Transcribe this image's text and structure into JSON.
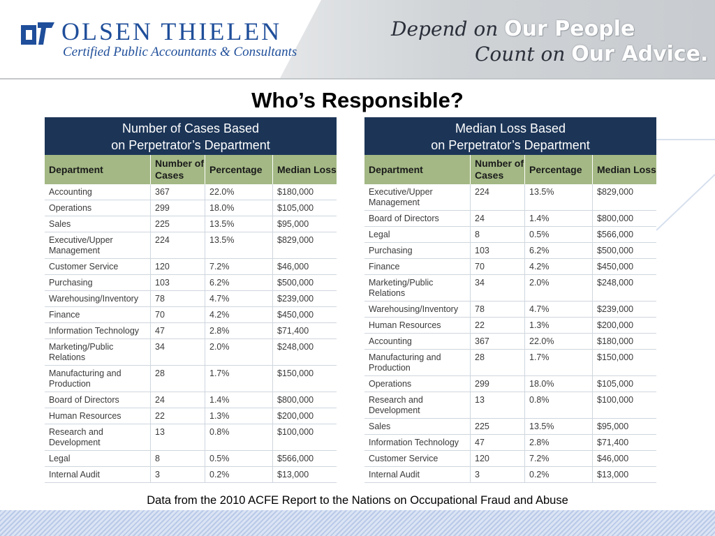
{
  "header": {
    "company_name": "Olsen Thielen",
    "company_subtitle": "Certified Public Accountants & Consultants",
    "tagline_line1_prefix": "Depend on",
    "tagline_line1_emphasis": "Our People",
    "tagline_line2_prefix": "Count on",
    "tagline_line2_emphasis": "Our Advice.",
    "brand_color": "#1f4e9a"
  },
  "title": "Who’s Responsible?",
  "columns": [
    "Department",
    "Number of Cases",
    "Percentage",
    "Median Loss"
  ],
  "left_table": {
    "heading_line1": "Number of Cases Based",
    "heading_line2": "on Perpetrator’s Department",
    "rows": [
      [
        "Accounting",
        "367",
        "22.0%",
        "$180,000"
      ],
      [
        "Operations",
        "299",
        "18.0%",
        "$105,000"
      ],
      [
        "Sales",
        "225",
        "13.5%",
        "$95,000"
      ],
      [
        "Executive/Upper Management",
        "224",
        "13.5%",
        "$829,000"
      ],
      [
        "Customer Service",
        "120",
        "7.2%",
        "$46,000"
      ],
      [
        "Purchasing",
        "103",
        "6.2%",
        "$500,000"
      ],
      [
        "Warehousing/Inventory",
        "78",
        "4.7%",
        "$239,000"
      ],
      [
        "Finance",
        "70",
        "4.2%",
        "$450,000"
      ],
      [
        "Information Technology",
        "47",
        "2.8%",
        "$71,400"
      ],
      [
        "Marketing/Public Relations",
        "34",
        "2.0%",
        "$248,000"
      ],
      [
        "Manufacturing and Production",
        "28",
        "1.7%",
        "$150,000"
      ],
      [
        "Board of Directors",
        "24",
        "1.4%",
        "$800,000"
      ],
      [
        "Human Resources",
        "22",
        "1.3%",
        "$200,000"
      ],
      [
        "Research and Development",
        "13",
        "0.8%",
        "$100,000"
      ],
      [
        "Legal",
        "8",
        "0.5%",
        "$566,000"
      ],
      [
        "Internal Audit",
        "3",
        "0.2%",
        "$13,000"
      ]
    ]
  },
  "right_table": {
    "heading_line1": "Median Loss Based",
    "heading_line2": "on Perpetrator’s Department",
    "rows": [
      [
        "Executive/Upper Management",
        "224",
        "13.5%",
        "$829,000"
      ],
      [
        "Board of Directors",
        "24",
        "1.4%",
        "$800,000"
      ],
      [
        "Legal",
        "8",
        "0.5%",
        "$566,000"
      ],
      [
        "Purchasing",
        "103",
        "6.2%",
        "$500,000"
      ],
      [
        "Finance",
        "70",
        "4.2%",
        "$450,000"
      ],
      [
        "Marketing/Public Relations",
        "34",
        "2.0%",
        "$248,000"
      ],
      [
        "Warehousing/Inventory",
        "78",
        "4.7%",
        "$239,000"
      ],
      [
        "Human Resources",
        "22",
        "1.3%",
        "$200,000"
      ],
      [
        "Accounting",
        "367",
        "22.0%",
        "$180,000"
      ],
      [
        "Manufacturing and Production",
        "28",
        "1.7%",
        "$150,000"
      ],
      [
        "Operations",
        "299",
        "18.0%",
        "$105,000"
      ],
      [
        "Research and Development",
        "13",
        "0.8%",
        "$100,000"
      ],
      [
        "Sales",
        "225",
        "13.5%",
        "$95,000"
      ],
      [
        "Information Technology",
        "47",
        "2.8%",
        "$71,400"
      ],
      [
        "Customer Service",
        "120",
        "7.2%",
        "$46,000"
      ],
      [
        "Internal Audit",
        "3",
        "0.2%",
        "$13,000"
      ]
    ]
  },
  "source_note": "Data from the 2010 ACFE Report to the Nations on Occupational Fraud and Abuse",
  "colors": {
    "table_heading_bg": "#1c3557",
    "column_header_bg": "#a3b884",
    "row_divider": "#cfd6de"
  }
}
